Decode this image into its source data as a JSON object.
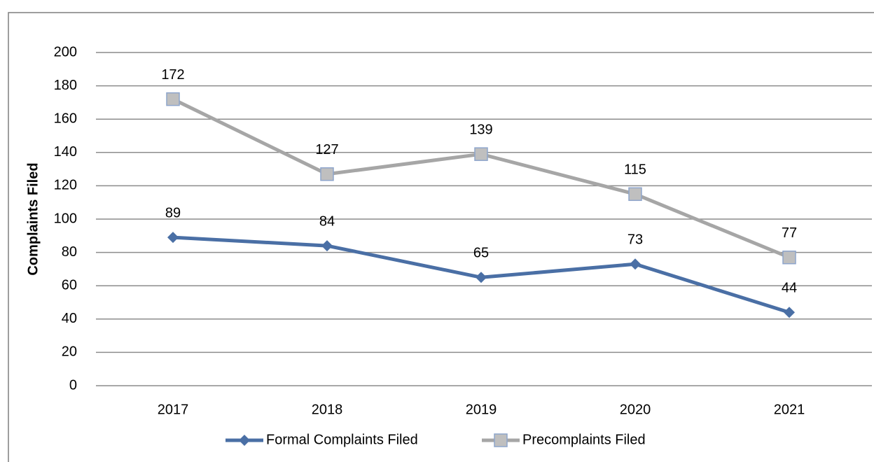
{
  "chart_data": {
    "type": "line",
    "y_label": "Complaints Filed",
    "categories": [
      "2017",
      "2018",
      "2019",
      "2020",
      "2021"
    ],
    "series": [
      {
        "name": "Formal Complaints Filed",
        "color": "#4a6fa5",
        "marker": "diamond",
        "values": [
          89,
          84,
          65,
          73,
          44
        ]
      },
      {
        "name": "Precomplaints Filed",
        "color": "#a6a6a6",
        "marker": "square",
        "values": [
          172,
          127,
          139,
          115,
          77
        ]
      }
    ],
    "ylim": [
      0,
      200
    ],
    "yticks": [
      0,
      20,
      40,
      60,
      80,
      100,
      120,
      140,
      160,
      180,
      200
    ],
    "grid": true,
    "legend": "bottom"
  }
}
